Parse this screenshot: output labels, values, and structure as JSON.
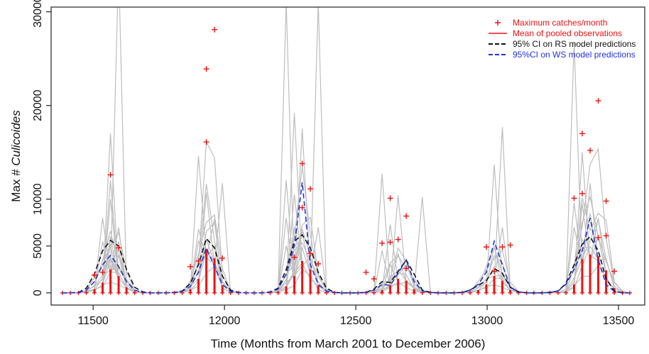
{
  "colors": {
    "sim": "#bdbdbd",
    "obs": "#ee1111",
    "rs": "#111111",
    "ws": "#2233dd",
    "axis": "#222222"
  },
  "chart_data": {
    "type": "line",
    "xlabel": "Time (Months from March 2001 to December 2006)",
    "ylabel_prefix": "Max # ",
    "ylabel_italic": "Culicoides",
    "xlim": [
      11340,
      13600
    ],
    "ylim": [
      -1300,
      30500
    ],
    "x_ticks": [
      11500,
      12000,
      12500,
      13000,
      13500
    ],
    "x_tick_labels": [
      "11500",
      "12000",
      "12500",
      "13000",
      "13500"
    ],
    "y_ticks": [
      0,
      5000,
      10000,
      20000,
      30000
    ],
    "y_tick_labels": [
      "0",
      "5000",
      "10000",
      "20000",
      "30000"
    ],
    "legend": {
      "position": "top-right",
      "entries": [
        {
          "label": "Maximum catches/month",
          "symbol": "plus",
          "color": "#ee1111"
        },
        {
          "label": "Mean of pooled observations",
          "symbol": "line",
          "color": "#ee1111"
        },
        {
          "label": "95% CI on RS model predictions",
          "symbol": "dashed",
          "color": "#111111"
        },
        {
          "label": "95%CI on WS model predictions",
          "symbol": "dashed",
          "color": "#2233dd"
        }
      ]
    },
    "months_x": [
      11383,
      11413,
      11444,
      11474,
      11505,
      11536,
      11566,
      11597,
      11627,
      11658,
      11689,
      11717,
      11748,
      11778,
      11809,
      11839,
      11870,
      11901,
      11931,
      11962,
      11992,
      12023,
      12054,
      12082,
      12113,
      12143,
      12174,
      12204,
      12235,
      12266,
      12296,
      12327,
      12357,
      12388,
      12419,
      12447,
      12478,
      12508,
      12539,
      12569,
      12600,
      12631,
      12661,
      12692,
      12722,
      12753,
      12784,
      12813,
      12844,
      12874,
      12905,
      12935,
      12966,
      12997,
      13027,
      13058,
      13088,
      13119,
      13150,
      13178,
      13209,
      13239,
      13270,
      13300,
      13331,
      13362,
      13392,
      13423,
      13453,
      13484,
      13515,
      13543
    ],
    "series": [
      {
        "name": "Mean of pooled observations",
        "style": "bars",
        "values": [
          0,
          0,
          0,
          100,
          400,
          1100,
          2500,
          1800,
          600,
          100,
          0,
          0,
          0,
          0,
          0,
          50,
          400,
          1500,
          4700,
          3700,
          800,
          100,
          0,
          0,
          0,
          0,
          0,
          100,
          700,
          1800,
          3400,
          2500,
          800,
          100,
          0,
          0,
          0,
          0,
          0,
          50,
          300,
          800,
          1500,
          1300,
          400,
          50,
          0,
          0,
          0,
          0,
          0,
          50,
          300,
          900,
          1800,
          1300,
          300,
          50,
          0,
          0,
          0,
          0,
          0,
          100,
          900,
          3600,
          4100,
          3900,
          2400,
          500,
          50,
          0
        ]
      },
      {
        "name": "95% CI on RS model predictions",
        "style": "dashed",
        "values": [
          0,
          0,
          50,
          500,
          2000,
          4500,
          5600,
          5000,
          2500,
          600,
          100,
          0,
          0,
          0,
          50,
          200,
          1000,
          3000,
          5800,
          4800,
          1800,
          300,
          50,
          0,
          0,
          0,
          100,
          500,
          2500,
          5500,
          6200,
          4800,
          2200,
          500,
          50,
          0,
          0,
          0,
          50,
          400,
          1200,
          1100,
          2300,
          3500,
          2000,
          300,
          50,
          0,
          0,
          0,
          50,
          300,
          800,
          1300,
          2600,
          2100,
          600,
          100,
          0,
          0,
          0,
          50,
          200,
          1000,
          3000,
          5200,
          6000,
          4500,
          1500,
          200,
          0,
          0
        ]
      },
      {
        "name": "95%CI on WS model predictions",
        "style": "dashed",
        "values": [
          0,
          0,
          50,
          300,
          1200,
          3000,
          4000,
          2800,
          1200,
          300,
          50,
          0,
          0,
          0,
          50,
          150,
          700,
          2200,
          4800,
          2800,
          900,
          150,
          50,
          0,
          0,
          0,
          100,
          400,
          2000,
          5000,
          11800,
          3000,
          900,
          200,
          50,
          0,
          0,
          0,
          50,
          300,
          900,
          800,
          2100,
          3500,
          1200,
          200,
          50,
          0,
          0,
          0,
          50,
          300,
          900,
          2200,
          5500,
          3000,
          600,
          100,
          0,
          0,
          0,
          50,
          200,
          900,
          2500,
          4500,
          8000,
          3500,
          900,
          150,
          0,
          0
        ]
      }
    ],
    "points": [
      {
        "name": "Maximum catches/month",
        "x": 11566,
        "y": 12600
      },
      {
        "name": "Maximum catches/month",
        "x": 11597,
        "y": 4800
      },
      {
        "name": "Maximum catches/month",
        "x": 11536,
        "y": 2200
      },
      {
        "name": "Maximum catches/month",
        "x": 11505,
        "y": 1900
      },
      {
        "name": "Maximum catches/month",
        "x": 11931,
        "y": 16100
      },
      {
        "name": "Maximum catches/month",
        "x": 11931,
        "y": 23900
      },
      {
        "name": "Maximum catches/month",
        "x": 11962,
        "y": 28100
      },
      {
        "name": "Maximum catches/month",
        "x": 11992,
        "y": 3700
      },
      {
        "name": "Maximum catches/month",
        "x": 11870,
        "y": 2800
      },
      {
        "name": "Maximum catches/month",
        "x": 11901,
        "y": 3400
      },
      {
        "name": "Maximum catches/month",
        "x": 12296,
        "y": 13800
      },
      {
        "name": "Maximum catches/month",
        "x": 12296,
        "y": 9100
      },
      {
        "name": "Maximum catches/month",
        "x": 12327,
        "y": 11100
      },
      {
        "name": "Maximum catches/month",
        "x": 12327,
        "y": 4200
      },
      {
        "name": "Maximum catches/month",
        "x": 12266,
        "y": 3800
      },
      {
        "name": "Maximum catches/month",
        "x": 12357,
        "y": 3100
      },
      {
        "name": "Maximum catches/month",
        "x": 12631,
        "y": 10100
      },
      {
        "name": "Maximum catches/month",
        "x": 12600,
        "y": 5300
      },
      {
        "name": "Maximum catches/month",
        "x": 12631,
        "y": 5400
      },
      {
        "name": "Maximum catches/month",
        "x": 12661,
        "y": 5700
      },
      {
        "name": "Maximum catches/month",
        "x": 12692,
        "y": 8200
      },
      {
        "name": "Maximum catches/month",
        "x": 12692,
        "y": 2600
      },
      {
        "name": "Maximum catches/month",
        "x": 12539,
        "y": 2200
      },
      {
        "name": "Maximum catches/month",
        "x": 12569,
        "y": 1500
      },
      {
        "name": "Maximum catches/month",
        "x": 12997,
        "y": 4900
      },
      {
        "name": "Maximum catches/month",
        "x": 13027,
        "y": 2300
      },
      {
        "name": "Maximum catches/month",
        "x": 13058,
        "y": 4900
      },
      {
        "name": "Maximum catches/month",
        "x": 13088,
        "y": 5100
      },
      {
        "name": "Maximum catches/month",
        "x": 13362,
        "y": 17000
      },
      {
        "name": "Maximum catches/month",
        "x": 13362,
        "y": 10600
      },
      {
        "name": "Maximum catches/month",
        "x": 13331,
        "y": 10100
      },
      {
        "name": "Maximum catches/month",
        "x": 13423,
        "y": 20500
      },
      {
        "name": "Maximum catches/month",
        "x": 13392,
        "y": 15200
      },
      {
        "name": "Maximum catches/month",
        "x": 13453,
        "y": 9800
      },
      {
        "name": "Maximum catches/month",
        "x": 13453,
        "y": 6100
      },
      {
        "name": "Maximum catches/month",
        "x": 13423,
        "y": 5900
      },
      {
        "name": "Maximum catches/month",
        "x": 13484,
        "y": 2300
      }
    ],
    "simulation_peaks": [
      {
        "x": 11566,
        "values": [
          12000,
          17000,
          10000,
          6000,
          5000,
          3600
        ]
      },
      {
        "x": 11597,
        "values": [
          35000,
          7000,
          5500,
          4000
        ]
      },
      {
        "x": 11536,
        "values": [
          8000,
          5500
        ]
      },
      {
        "x": 11901,
        "values": [
          14600,
          6800,
          5500,
          3500
        ]
      },
      {
        "x": 11931,
        "values": [
          10700,
          4500
        ]
      },
      {
        "x": 11962,
        "values": [
          7900,
          5000,
          3000
        ]
      },
      {
        "x": 11992,
        "values": [
          11700
        ]
      },
      {
        "x": 12235,
        "values": [
          31000,
          12000,
          8000,
          5000
        ]
      },
      {
        "x": 12266,
        "values": [
          19200,
          10500,
          7000
        ]
      },
      {
        "x": 12296,
        "values": [
          17500,
          6500,
          4800
        ]
      },
      {
        "x": 12357,
        "values": [
          31000,
          7000
        ]
      },
      {
        "x": 12600,
        "values": [
          12700,
          4500
        ]
      },
      {
        "x": 12631,
        "values": [
          7300,
          3000
        ]
      },
      {
        "x": 12661,
        "values": [
          10400,
          4200
        ]
      },
      {
        "x": 12753,
        "values": [
          10200
        ]
      },
      {
        "x": 13027,
        "values": [
          13700,
          5000
        ]
      },
      {
        "x": 13058,
        "values": [
          17700,
          7000
        ]
      },
      {
        "x": 13331,
        "values": [
          26700,
          9600,
          7000
        ]
      },
      {
        "x": 13362,
        "values": [
          15000,
          9500
        ]
      },
      {
        "x": 13392,
        "values": [
          11700,
          8500
        ]
      },
      {
        "x": 13423,
        "values": [
          8000,
          6000
        ]
      }
    ]
  }
}
